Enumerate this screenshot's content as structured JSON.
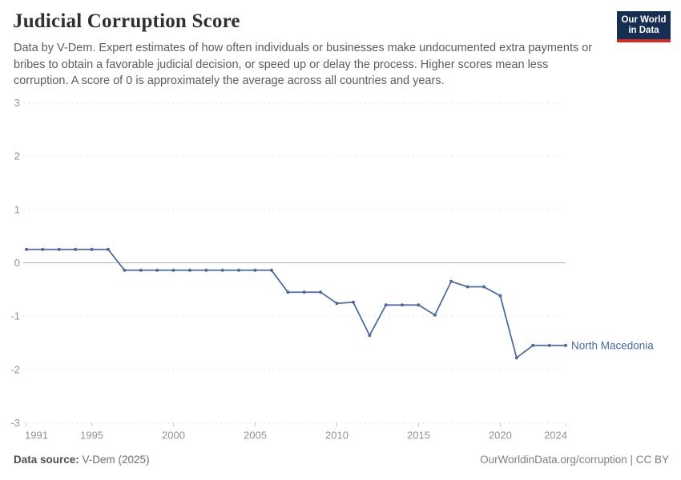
{
  "header": {
    "title": "Judicial Corruption Score",
    "subtitle": "Data by V-Dem. Expert estimates of how often individuals or businesses make undocumented extra payments or bribes to obtain a favorable judicial decision, or speed up or delay the process. Higher scores mean less corruption. A score of 0 is approximately the average across all countries and years.",
    "logo": {
      "line1": "Our World",
      "line2": "in Data"
    }
  },
  "chart_data": {
    "type": "line",
    "title": "Judicial Corruption Score",
    "xlabel": "",
    "ylabel": "",
    "xlim": [
      1991,
      2024
    ],
    "ylim": [
      -3,
      3
    ],
    "xticks": [
      1991,
      1995,
      2000,
      2005,
      2010,
      2015,
      2020,
      2024
    ],
    "yticks": [
      3,
      2,
      1,
      0,
      -1,
      -2,
      -3
    ],
    "grid": "horizontal-dashed",
    "zero_line": true,
    "legend_position": "end-of-line-label",
    "x": [
      1991,
      1992,
      1993,
      1994,
      1995,
      1996,
      1997,
      1998,
      1999,
      2000,
      2001,
      2002,
      2003,
      2004,
      2005,
      2006,
      2007,
      2008,
      2009,
      2010,
      2011,
      2012,
      2013,
      2014,
      2015,
      2016,
      2017,
      2018,
      2019,
      2020,
      2021,
      2022,
      2023,
      2024
    ],
    "series": [
      {
        "name": "North Macedonia",
        "color": "#4C6A9C",
        "values": [
          0.25,
          0.25,
          0.25,
          0.25,
          0.25,
          0.25,
          -0.14,
          -0.14,
          -0.14,
          -0.14,
          -0.14,
          -0.14,
          -0.14,
          -0.14,
          -0.14,
          -0.14,
          -0.55,
          -0.55,
          -0.55,
          -0.76,
          -0.74,
          -1.36,
          -0.79,
          -0.79,
          -0.79,
          -0.98,
          -0.35,
          -0.45,
          -0.45,
          -0.62,
          -1.78,
          -1.55,
          -1.55,
          -1.55
        ]
      }
    ]
  },
  "footer": {
    "source_label": "Data source:",
    "source_value": " V-Dem (2025)",
    "attribution": "OurWorldinData.org/corruption | CC BY"
  },
  "colors": {
    "accent": "#4C6A9C",
    "logo_navy": "#152e52",
    "logo_red": "#d42b21",
    "grid": "#e2e2e2",
    "zero_line": "#adadad",
    "tick_text": "#929292",
    "axis_tick": "#c9c9c9"
  }
}
